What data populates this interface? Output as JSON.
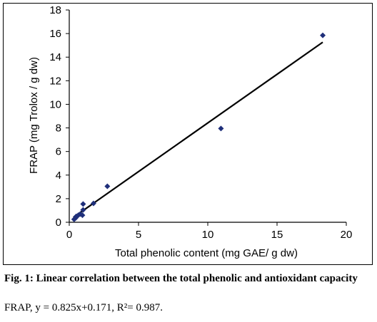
{
  "chart_data": {
    "type": "scatter",
    "xlabel": "Total phenolic content (mg GAE/ g dw)",
    "ylabel": "FRAP (mg Trolox / g dw)",
    "xlim": [
      0,
      20
    ],
    "ylim": [
      0,
      18
    ],
    "xticks": [
      0,
      5,
      10,
      15,
      20
    ],
    "yticks": [
      0,
      2,
      4,
      6,
      8,
      10,
      12,
      14,
      16,
      18
    ],
    "grid": false,
    "legend": "none",
    "series": [
      {
        "marker": "diamond",
        "color": "#1f2f7a",
        "points": [
          {
            "x": 0.35,
            "y": 0.25
          },
          {
            "x": 0.45,
            "y": 0.35
          },
          {
            "x": 0.5,
            "y": 0.5
          },
          {
            "x": 0.65,
            "y": 0.6
          },
          {
            "x": 0.8,
            "y": 0.7
          },
          {
            "x": 0.95,
            "y": 0.6
          },
          {
            "x": 1.0,
            "y": 1.05
          },
          {
            "x": 1.0,
            "y": 1.55
          },
          {
            "x": 1.75,
            "y": 1.6
          },
          {
            "x": 2.75,
            "y": 3.05
          },
          {
            "x": 10.95,
            "y": 7.95
          },
          {
            "x": 18.3,
            "y": 15.85
          }
        ]
      }
    ],
    "trendline": {
      "slope": 0.825,
      "intercept": 0.171,
      "x_range": [
        0.3,
        18.3
      ],
      "color": "#000000"
    }
  },
  "caption": {
    "title": "Fig. 1: Linear correlation between the total phenolic and antioxidant capacity",
    "equation": "FRAP, y = 0.825x+0.171, R²= 0.987."
  }
}
